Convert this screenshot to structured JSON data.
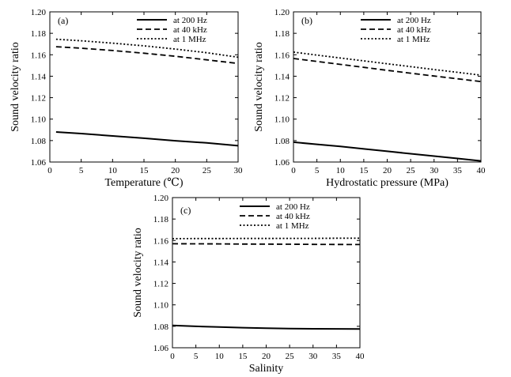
{
  "figure_description_free": true,
  "colors": {
    "line": "#000000",
    "background": "#ffffff"
  },
  "chart_data": [
    {
      "type": "line",
      "panel_label": "(a)",
      "xlabel": "Temperature (℃)",
      "ylabel": "Sound velocity ratio",
      "xlim": [
        0,
        30
      ],
      "ylim": [
        1.06,
        1.2
      ],
      "xticks": [
        0,
        5,
        10,
        15,
        20,
        25,
        30
      ],
      "xtick_labels": [
        "0",
        "5",
        "10",
        "15",
        "20",
        "25",
        "30"
      ],
      "yticks": [
        1.06,
        1.08,
        1.1,
        1.12,
        1.14,
        1.16,
        1.18,
        1.2
      ],
      "ytick_labels": [
        "1.06",
        "1.08",
        "1.10",
        "1.12",
        "1.14",
        "1.16",
        "1.18",
        "1.20"
      ],
      "legend_position": "top-right",
      "series": [
        {
          "name": "at 200 Hz",
          "style": "solid",
          "x": [
            1,
            5,
            10,
            15,
            20,
            25,
            30
          ],
          "values": [
            1.088,
            1.0865,
            1.0843,
            1.0822,
            1.0798,
            1.0778,
            1.0752
          ]
        },
        {
          "name": "at 40 kHz",
          "style": "dashed",
          "x": [
            1,
            5,
            10,
            15,
            20,
            25,
            30
          ],
          "values": [
            1.1675,
            1.1661,
            1.164,
            1.1615,
            1.1586,
            1.1553,
            1.1519
          ]
        },
        {
          "name": "at 1 MHz",
          "style": "dotted",
          "x": [
            1,
            5,
            10,
            15,
            20,
            25,
            30
          ],
          "values": [
            1.1745,
            1.173,
            1.1708,
            1.1683,
            1.1653,
            1.1619,
            1.1577
          ]
        }
      ]
    },
    {
      "type": "line",
      "panel_label": "(b)",
      "xlabel": "Hydrostatic pressure (MPa)",
      "ylabel": "Sound velocity ratio",
      "xlim": [
        0,
        40
      ],
      "ylim": [
        1.06,
        1.2
      ],
      "xticks": [
        0,
        5,
        10,
        15,
        20,
        25,
        30,
        35,
        40
      ],
      "xtick_labels": [
        "0",
        "5",
        "10",
        "15",
        "20",
        "25",
        "30",
        "35",
        "40"
      ],
      "yticks": [
        1.06,
        1.08,
        1.1,
        1.12,
        1.14,
        1.16,
        1.18,
        1.2
      ],
      "ytick_labels": [
        "1.06",
        "1.08",
        "1.10",
        "1.12",
        "1.14",
        "1.16",
        "1.18",
        "1.20"
      ],
      "legend_position": "top-right",
      "series": [
        {
          "name": "at 200 Hz",
          "style": "solid",
          "x": [
            0,
            5,
            10,
            15,
            20,
            25,
            30,
            35,
            40
          ],
          "values": [
            1.0785,
            1.0765,
            1.0745,
            1.0722,
            1.07,
            1.0677,
            1.0655,
            1.0633,
            1.061
          ]
        },
        {
          "name": "at 40 kHz",
          "style": "dashed",
          "x": [
            0,
            5,
            10,
            15,
            20,
            25,
            30,
            35,
            40
          ],
          "values": [
            1.1565,
            1.1538,
            1.151,
            1.1483,
            1.1455,
            1.1428,
            1.1402,
            1.1376,
            1.135
          ]
        },
        {
          "name": "at 1 MHz",
          "style": "dotted",
          "x": [
            0,
            5,
            10,
            15,
            20,
            25,
            30,
            35,
            40
          ],
          "values": [
            1.1625,
            1.1597,
            1.157,
            1.1543,
            1.1516,
            1.1489,
            1.1462,
            1.1436,
            1.141
          ]
        }
      ]
    },
    {
      "type": "line",
      "panel_label": "(c)",
      "xlabel": "Salinity",
      "ylabel": "Sound velocity ratio",
      "xlim": [
        0,
        40
      ],
      "ylim": [
        1.06,
        1.2
      ],
      "xticks": [
        0,
        5,
        10,
        15,
        20,
        25,
        30,
        35,
        40
      ],
      "xtick_labels": [
        "0",
        "5",
        "10",
        "15",
        "20",
        "25",
        "30",
        "35",
        "40"
      ],
      "yticks": [
        1.06,
        1.08,
        1.1,
        1.12,
        1.14,
        1.16,
        1.18,
        1.2
      ],
      "ytick_labels": [
        "1.06",
        "1.08",
        "1.10",
        "1.12",
        "1.14",
        "1.16",
        "1.18",
        "1.20"
      ],
      "legend_position": "top-right",
      "series": [
        {
          "name": "at 200 Hz",
          "style": "solid",
          "x": [
            0,
            5,
            10,
            15,
            20,
            25,
            30,
            35,
            40
          ],
          "values": [
            1.0808,
            1.08,
            1.0793,
            1.0787,
            1.0782,
            1.0779,
            1.0777,
            1.0776,
            1.0775
          ]
        },
        {
          "name": "at 40 kHz",
          "style": "dashed",
          "x": [
            0,
            5,
            10,
            15,
            20,
            25,
            30,
            35,
            40
          ],
          "values": [
            1.157,
            1.1569,
            1.1568,
            1.1567,
            1.1566,
            1.1565,
            1.1564,
            1.1563,
            1.1562
          ]
        },
        {
          "name": "at 1 MHz",
          "style": "dotted",
          "x": [
            0,
            5,
            10,
            15,
            20,
            25,
            30,
            35,
            40
          ],
          "values": [
            1.1617,
            1.1618,
            1.1618,
            1.1619,
            1.1619,
            1.162,
            1.162,
            1.1621,
            1.1621
          ]
        }
      ]
    }
  ]
}
